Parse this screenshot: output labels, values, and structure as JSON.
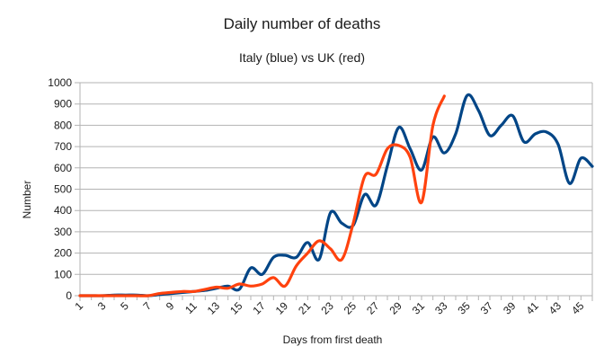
{
  "chart_data": {
    "type": "line",
    "title": "Daily number of deaths",
    "subtitle": "Italy (blue) vs UK (red)",
    "xlabel": "Days from first death",
    "ylabel": "Number",
    "ylim": [
      0,
      1000
    ],
    "yticks": [
      "0",
      "100",
      "200",
      "300",
      "400",
      "500",
      "600",
      "700",
      "800",
      "900",
      "1000"
    ],
    "xlim": [
      1,
      46
    ],
    "xtick_labels": [
      "1",
      "3",
      "5",
      "7",
      "9",
      "11",
      "13",
      "15",
      "17",
      "19",
      "21",
      "23",
      "25",
      "27",
      "29",
      "31",
      "33",
      "35",
      "37",
      "39",
      "41",
      "43",
      "45"
    ],
    "grid": true,
    "series": [
      {
        "name": "Italy",
        "color": "#004586",
        "x": [
          1,
          2,
          3,
          4,
          5,
          6,
          7,
          8,
          9,
          10,
          11,
          12,
          13,
          14,
          15,
          16,
          17,
          18,
          19,
          20,
          21,
          22,
          23,
          24,
          25,
          26,
          27,
          28,
          29,
          30,
          31,
          32,
          33,
          34,
          35,
          36,
          37,
          38,
          39,
          40,
          41,
          42,
          43,
          44,
          45,
          46
        ],
        "values": [
          0,
          0,
          0,
          3,
          3,
          3,
          0,
          5,
          10,
          15,
          20,
          25,
          35,
          45,
          30,
          130,
          100,
          180,
          190,
          180,
          250,
          170,
          390,
          340,
          330,
          475,
          425,
          610,
          790,
          690,
          590,
          745,
          670,
          760,
          940,
          870,
          752,
          800,
          845,
          722,
          760,
          768,
          710,
          527,
          645,
          607
        ]
      },
      {
        "name": "UK",
        "color": "#ff420e",
        "x": [
          1,
          2,
          3,
          4,
          5,
          6,
          7,
          8,
          9,
          10,
          11,
          12,
          13,
          14,
          15,
          16,
          17,
          18,
          19,
          20,
          21,
          22,
          23,
          24,
          25,
          26,
          27,
          28,
          29,
          30,
          31,
          32,
          33
        ],
        "values": [
          0,
          0,
          0,
          0,
          0,
          0,
          0,
          10,
          15,
          20,
          20,
          30,
          40,
          35,
          55,
          45,
          55,
          85,
          45,
          140,
          200,
          258,
          220,
          170,
          340,
          560,
          570,
          690,
          705,
          650,
          438,
          800,
          937
        ]
      }
    ]
  }
}
